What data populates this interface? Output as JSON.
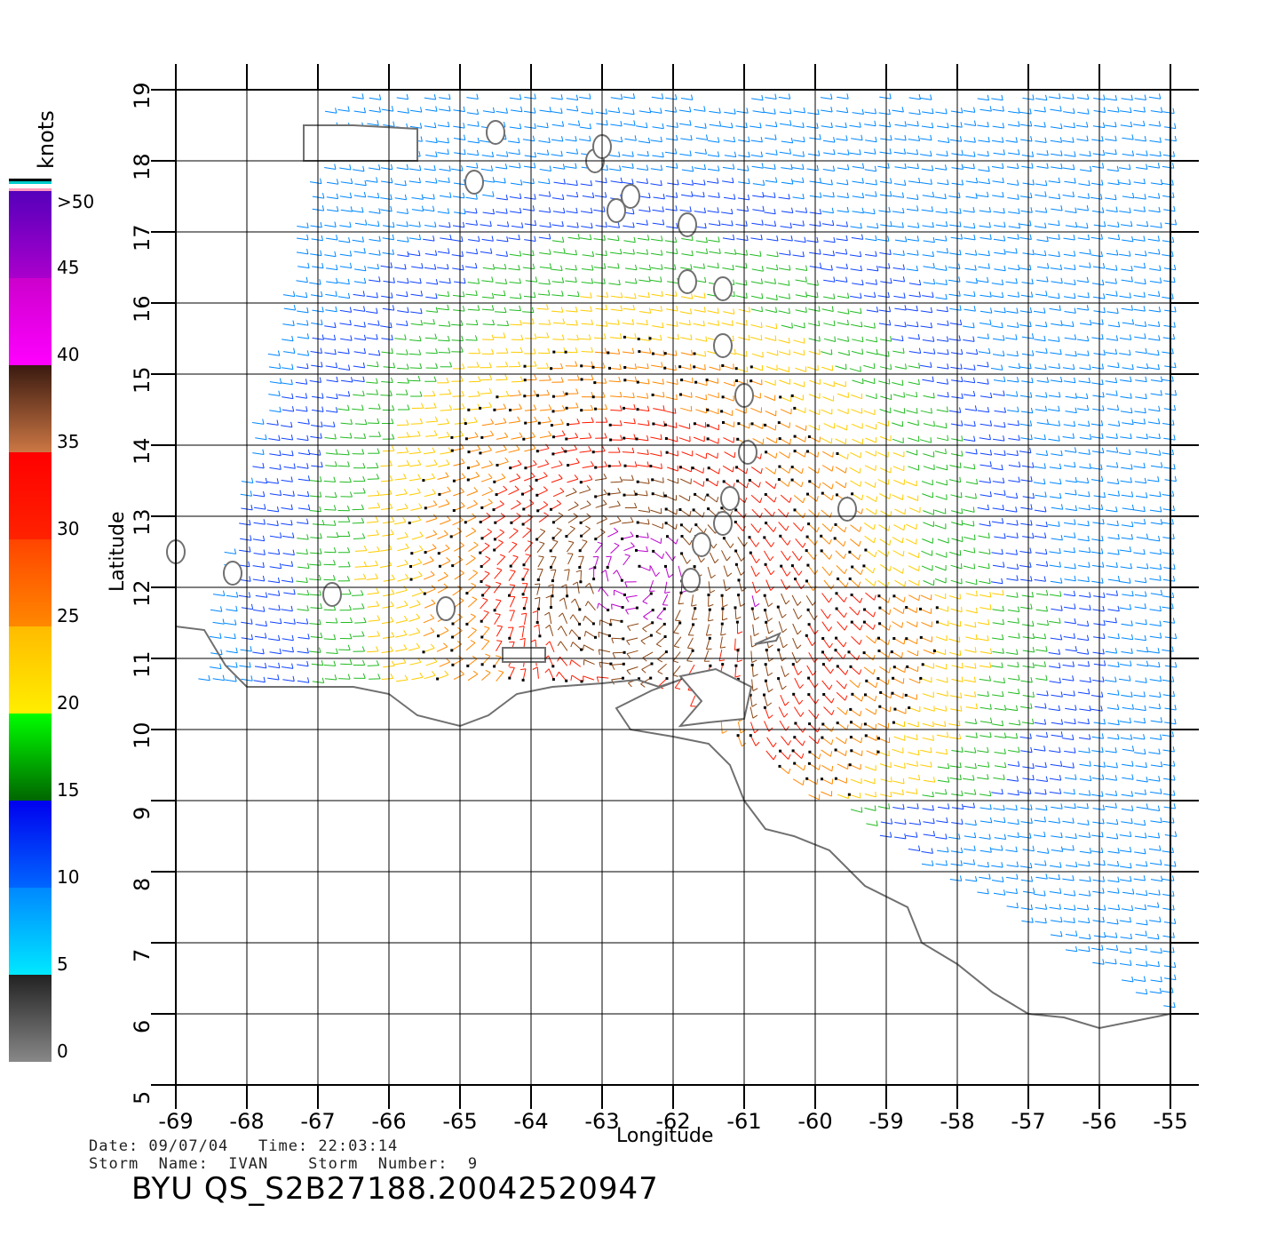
{
  "legend": {
    "unit": "knots",
    "ticks": [
      ">50",
      "45",
      "40",
      "35",
      "30",
      "25",
      "20",
      "15",
      "10",
      "5",
      "0"
    ],
    "tick_values": [
      50,
      45,
      40,
      35,
      30,
      25,
      20,
      15,
      10,
      5,
      0
    ],
    "segments": [
      {
        "from": 0,
        "to": 5,
        "colors": [
          "#888888",
          "#222222"
        ]
      },
      {
        "from": 5,
        "to": 10,
        "colors": [
          "#00e8ff",
          "#0088ff"
        ]
      },
      {
        "from": 10,
        "to": 15,
        "colors": [
          "#0066ff",
          "#0000ee"
        ]
      },
      {
        "from": 15,
        "to": 20,
        "colors": [
          "#006600",
          "#00ff00"
        ]
      },
      {
        "from": 20,
        "to": 25,
        "colors": [
          "#ffee00",
          "#ffbb00"
        ]
      },
      {
        "from": 25,
        "to": 30,
        "colors": [
          "#ff8800",
          "#ff4400"
        ]
      },
      {
        "from": 30,
        "to": 35,
        "colors": [
          "#ff2200",
          "#ff0000"
        ]
      },
      {
        "from": 35,
        "to": 40,
        "colors": [
          "#cc7744",
          "#3a1a10"
        ]
      },
      {
        "from": 40,
        "to": 45,
        "colors": [
          "#ff00ff",
          "#cc00cc"
        ]
      },
      {
        "from": 45,
        "to": 50,
        "colors": [
          "#aa00cc",
          "#5500bb"
        ]
      }
    ]
  },
  "axes": {
    "xlabel": "Longitude",
    "ylabel": "Latitude",
    "lon_ticks": [
      "-69",
      "-68",
      "-67",
      "-66",
      "-65",
      "-64",
      "-63",
      "-62",
      "-61",
      "-60",
      "-59",
      "-58",
      "-57",
      "-56",
      "-55"
    ],
    "lat_ticks": [
      "19",
      "18",
      "17",
      "16",
      "15",
      "14",
      "13",
      "12",
      "11",
      "10",
      "9",
      "8",
      "7",
      "6",
      "5"
    ],
    "lon_range": [
      -69,
      -55
    ],
    "lat_range": [
      5,
      19
    ],
    "grid": true
  },
  "info": {
    "date_line": "Date: 09/07/04   Time: 22:03:14",
    "storm_line": "Storm  Name:  IVAN    Storm  Number:  9",
    "product_id": "BYU  QS_S2B27188.20042520947"
  },
  "colors": {
    "coastline": "#707070",
    "grid": "#000000",
    "rain_flag": "#000000"
  },
  "chart_data": {
    "type": "wind-barbs",
    "description_units": "knots",
    "storm_center": {
      "lon": -62.5,
      "lat": 12.2
    },
    "swath_west_edge": [
      [
        -67.2,
        17.5
      ],
      [
        -68.7,
        11.0
      ]
    ],
    "speed_bands": [
      {
        "region": "core",
        "speed": 42
      },
      {
        "region": "inner",
        "speed": 32
      },
      {
        "region": "outer",
        "speed": 22
      },
      {
        "region": "far",
        "speed": 14
      }
    ]
  }
}
